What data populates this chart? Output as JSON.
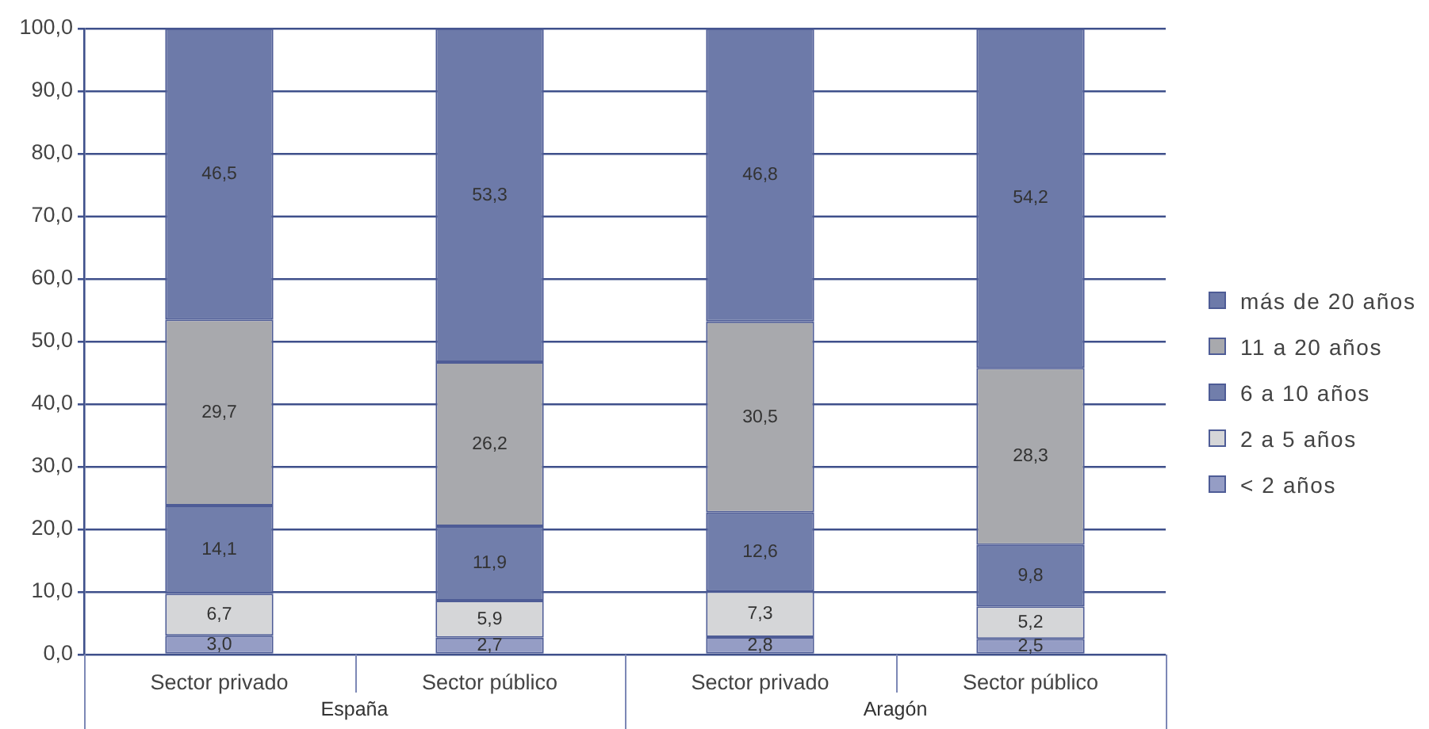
{
  "chart_data": {
    "type": "bar",
    "stacked": true,
    "categories": [
      "Sector privado",
      "Sector público",
      "Sector privado",
      "Sector público"
    ],
    "series": [
      {
        "name": "< 2 años",
        "color": "#959dc5",
        "values": [
          3.0,
          2.7,
          2.8,
          2.5
        ],
        "value_labels": [
          "3,0",
          "2,7",
          "2,8",
          "2,5"
        ]
      },
      {
        "name": "2 a 5 años",
        "color": "#d5d6d8",
        "values": [
          6.7,
          5.9,
          7.3,
          5.2
        ],
        "value_labels": [
          "6,7",
          "5,9",
          "7,3",
          "5,2"
        ]
      },
      {
        "name": "6 a 10 años",
        "color": "#717eab",
        "values": [
          14.1,
          11.9,
          12.6,
          9.8
        ],
        "value_labels": [
          "14,1",
          "11,9",
          "12,6",
          "9,8"
        ]
      },
      {
        "name": "11 a 20 años",
        "color": "#a8a9ad",
        "values": [
          29.7,
          26.2,
          30.5,
          28.3
        ],
        "value_labels": [
          "29,7",
          "26,2",
          "30,5",
          "28,3"
        ]
      },
      {
        "name": "más de 20 años",
        "color": "#6d7aa9",
        "values": [
          46.5,
          53.3,
          46.8,
          54.2
        ],
        "value_labels": [
          "46,5",
          "53,3",
          "46,8",
          "54,2"
        ]
      }
    ],
    "ylim": [
      0,
      100
    ],
    "yticks": [
      {
        "value": 0,
        "label": "0,0"
      },
      {
        "value": 10,
        "label": "10,0"
      },
      {
        "value": 20,
        "label": "20,0"
      },
      {
        "value": 30,
        "label": "30,0"
      },
      {
        "value": 40,
        "label": "40,0"
      },
      {
        "value": 50,
        "label": "50,0"
      },
      {
        "value": 60,
        "label": "60,0"
      },
      {
        "value": 70,
        "label": "70,0"
      },
      {
        "value": 80,
        "label": "80,0"
      },
      {
        "value": 90,
        "label": "90,0"
      },
      {
        "value": 100,
        "label": "100,0"
      }
    ],
    "grid": "y",
    "legend": "right",
    "annotations": [
      "España",
      "Aragón"
    ]
  }
}
